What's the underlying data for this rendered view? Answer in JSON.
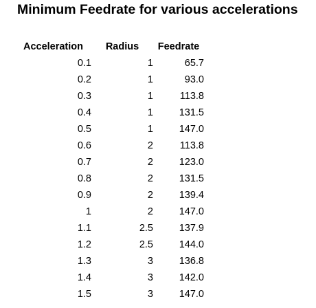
{
  "title": "Minimum Feedrate for various accelerations",
  "table": {
    "headers": [
      "Acceleration",
      "Radius",
      "Feedrate"
    ],
    "rows": [
      [
        "0.1",
        "1",
        "65.7"
      ],
      [
        "0.2",
        "1",
        "93.0"
      ],
      [
        "0.3",
        "1",
        "113.8"
      ],
      [
        "0.4",
        "1",
        "131.5"
      ],
      [
        "0.5",
        "1",
        "147.0"
      ],
      [
        "0.6",
        "2",
        "113.8"
      ],
      [
        "0.7",
        "2",
        "123.0"
      ],
      [
        "0.8",
        "2",
        "131.5"
      ],
      [
        "0.9",
        "2",
        "139.4"
      ],
      [
        "1",
        "2",
        "147.0"
      ],
      [
        "1.1",
        "2.5",
        "137.9"
      ],
      [
        "1.2",
        "2.5",
        "144.0"
      ],
      [
        "1.3",
        "3",
        "136.8"
      ],
      [
        "1.4",
        "3",
        "142.0"
      ],
      [
        "1.5",
        "3",
        "147.0"
      ]
    ]
  }
}
